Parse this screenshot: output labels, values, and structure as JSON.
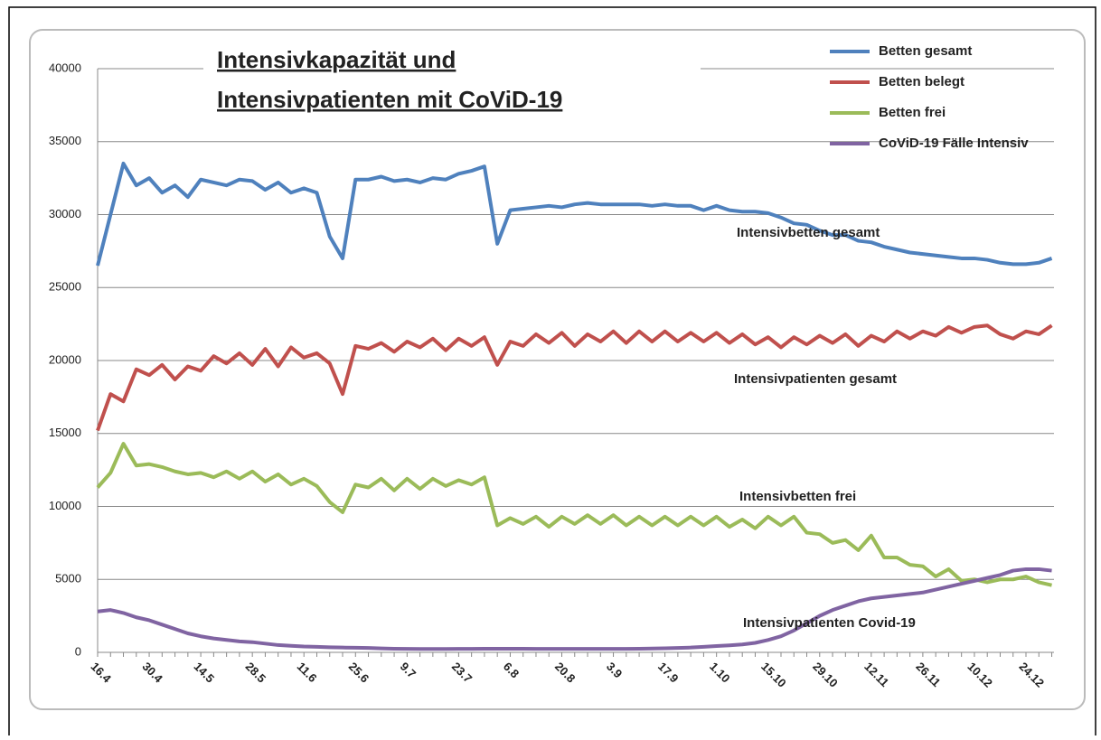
{
  "chart_data": {
    "type": "line",
    "title_lines": [
      "Intensivkapazität und ",
      "Intensivpatienten mit CoViD-19"
    ],
    "categories": [
      "16.4",
      null,
      null,
      null,
      "30.4",
      null,
      null,
      null,
      "14.5",
      null,
      null,
      null,
      "28.5",
      null,
      null,
      null,
      "11.6",
      null,
      null,
      null,
      "25.6",
      null,
      null,
      null,
      "9.7",
      null,
      null,
      null,
      "23.7",
      null,
      null,
      null,
      "6.8",
      null,
      null,
      null,
      "20.8",
      null,
      null,
      null,
      "3.9",
      null,
      null,
      null,
      "17.9",
      null,
      null,
      null,
      "1.10",
      null,
      null,
      null,
      "15.10",
      null,
      null,
      null,
      "29.10",
      null,
      null,
      null,
      "12.11",
      null,
      null,
      null,
      "26.11",
      null,
      null,
      null,
      "10.12",
      null,
      null,
      null,
      "24.12",
      null,
      null
    ],
    "series": [
      {
        "name": "Betten gesamt",
        "color": "#4f81bd",
        "values": [
          26500,
          30000,
          33500,
          32000,
          32500,
          31500,
          32000,
          31200,
          32400,
          32200,
          32000,
          32400,
          32300,
          31700,
          32200,
          31500,
          31800,
          31500,
          28500,
          27000,
          32400,
          32400,
          32600,
          32300,
          32400,
          32200,
          32500,
          32400,
          32800,
          33000,
          33300,
          28000,
          30300,
          30400,
          30500,
          30600,
          30500,
          30700,
          30800,
          30700,
          30700,
          30700,
          30700,
          30600,
          30700,
          30600,
          30600,
          30300,
          30600,
          30300,
          30200,
          30200,
          30100,
          29800,
          29400,
          29300,
          28900,
          28600,
          28600,
          28200,
          28100,
          27800,
          27600,
          27400,
          27300,
          27200,
          27100,
          27000,
          27000,
          26900,
          26700,
          26600,
          26600,
          26700,
          27000
        ]
      },
      {
        "name": "Betten belegt",
        "color": "#c0504d",
        "values": [
          15200,
          17700,
          17200,
          19400,
          19000,
          19700,
          18700,
          19600,
          19300,
          20300,
          19800,
          20500,
          19700,
          20800,
          19600,
          20900,
          20200,
          20500,
          19800,
          17700,
          21000,
          20800,
          21200,
          20600,
          21300,
          20900,
          21500,
          20700,
          21500,
          21000,
          21600,
          19700,
          21300,
          21000,
          21800,
          21200,
          21900,
          21000,
          21800,
          21300,
          22000,
          21200,
          22000,
          21300,
          22000,
          21300,
          21900,
          21300,
          21900,
          21200,
          21800,
          21100,
          21600,
          20900,
          21600,
          21100,
          21700,
          21200,
          21800,
          21000,
          21700,
          21300,
          22000,
          21500,
          22000,
          21700,
          22300,
          21900,
          22300,
          22400,
          21800,
          21500,
          22000,
          21800,
          22400
        ]
      },
      {
        "name": "Betten frei",
        "color": "#9bbb59",
        "values": [
          11300,
          12300,
          14300,
          12800,
          12900,
          12700,
          12400,
          12200,
          12300,
          12000,
          12400,
          11900,
          12400,
          11700,
          12200,
          11500,
          11900,
          11400,
          10300,
          9600,
          11500,
          11300,
          11900,
          11100,
          11900,
          11200,
          11900,
          11400,
          11800,
          11500,
          12000,
          8700,
          9200,
          8800,
          9300,
          8600,
          9300,
          8800,
          9400,
          8800,
          9400,
          8700,
          9300,
          8700,
          9300,
          8700,
          9300,
          8700,
          9300,
          8600,
          9100,
          8500,
          9300,
          8700,
          9300,
          8200,
          8100,
          7500,
          7700,
          7000,
          8000,
          6500,
          6500,
          6000,
          5900,
          5200,
          5700,
          4900,
          5000,
          4800,
          5000,
          5000,
          5200,
          4800,
          4600
        ]
      },
      {
        "name": "CoViD-19 Fälle Intensiv",
        "color": "#8064a2",
        "values": [
          2800,
          2900,
          2700,
          2400,
          2200,
          1900,
          1600,
          1300,
          1100,
          950,
          850,
          750,
          700,
          600,
          500,
          450,
          400,
          380,
          350,
          330,
          320,
          300,
          270,
          250,
          240,
          230,
          230,
          230,
          240,
          240,
          250,
          250,
          250,
          250,
          240,
          240,
          240,
          240,
          240,
          240,
          240,
          240,
          250,
          260,
          280,
          300,
          330,
          380,
          430,
          480,
          540,
          650,
          850,
          1100,
          1500,
          2000,
          2500,
          2900,
          3200,
          3500,
          3700,
          3800,
          3900,
          4000,
          4100,
          4300,
          4500,
          4700,
          4900,
          5100,
          5300,
          5600,
          5700,
          5700,
          5600
        ]
      }
    ],
    "annotations": [
      {
        "text": "Intensivbetten gesamt",
        "series": 0
      },
      {
        "text": "Intensivpatienten gesamt",
        "series": 1
      },
      {
        "text": "Intensivbetten  frei",
        "series": 2
      },
      {
        "text": "Intensivpatienten Covid-19",
        "series": 3
      }
    ],
    "ylim": [
      0,
      40000
    ],
    "yticks": [
      0,
      5000,
      10000,
      15000,
      20000,
      25000,
      30000,
      35000,
      40000
    ],
    "grid": true,
    "legend": "top-right"
  }
}
